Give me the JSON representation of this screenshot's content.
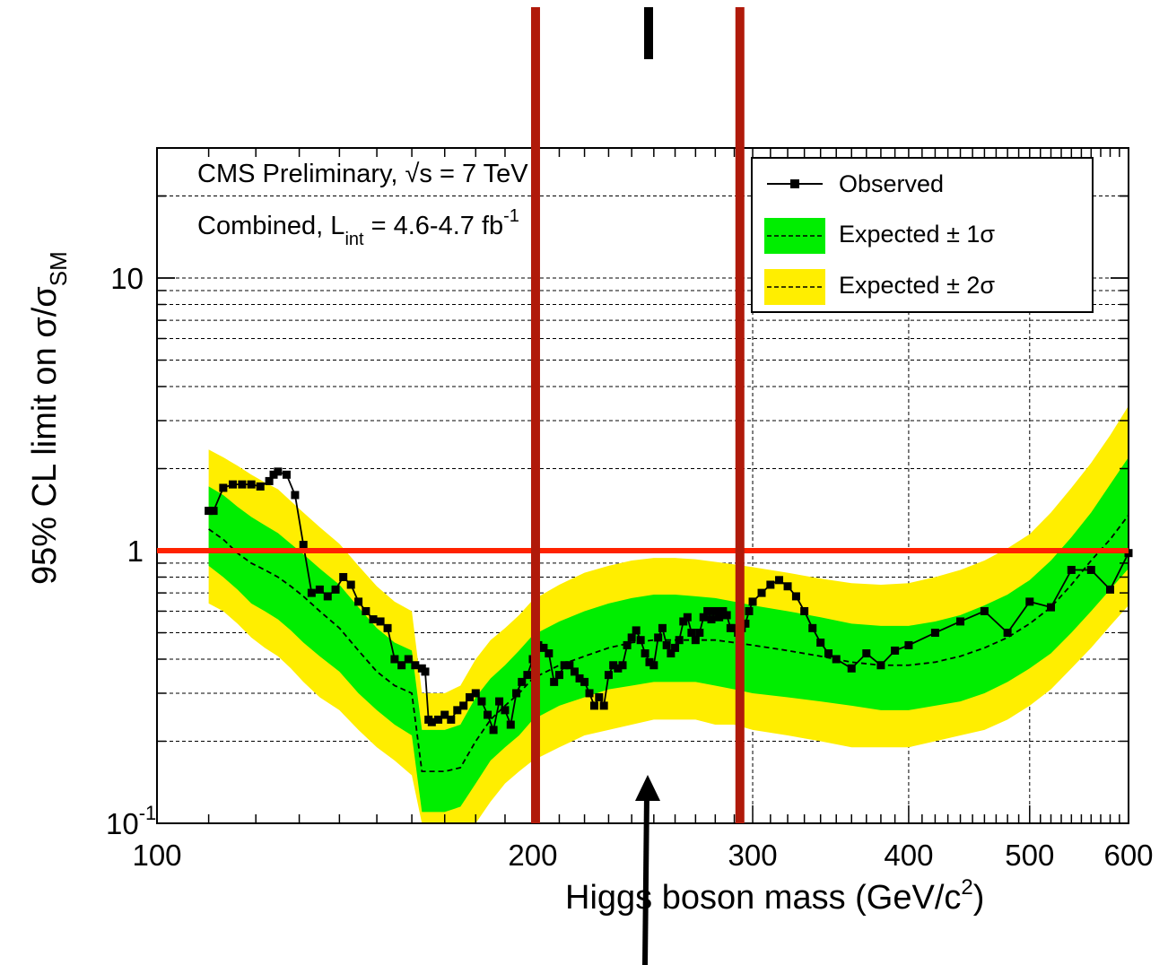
{
  "chart_data": {
    "type": "line",
    "x_scale": "log",
    "y_scale": "log",
    "xlim": [
      100,
      600
    ],
    "ylim": [
      0.1,
      30
    ],
    "grid": true,
    "legend_position": "top-right",
    "title_lines": {
      "line1_prefix": "CMS Preliminary, ",
      "sqrt": "√s",
      "line1_suffix": " = 7 TeV",
      "line2_prefix": "Combined, L",
      "line2_sub": "int",
      "line2_mid": " = 4.6-4.7 fb",
      "line2_sup": "-1"
    },
    "xlabel": {
      "text": "Higgs boson mass (GeV/c",
      "sup": "2",
      "suffix": ")"
    },
    "ylabel": {
      "text": "95% CL limit on σ/σ",
      "sub": "SM"
    },
    "x_ticks": [
      {
        "value": 100,
        "label": "100"
      },
      {
        "value": 200,
        "label": "200"
      },
      {
        "value": 300,
        "label": "300"
      },
      {
        "value": 400,
        "label": "400"
      },
      {
        "value": 500,
        "label": "500"
      },
      {
        "value": 600,
        "label": "600"
      }
    ],
    "y_ticks": [
      {
        "value": 0.1,
        "label": "10",
        "sup": "-1"
      },
      {
        "value": 1,
        "label": "1",
        "sup": ""
      },
      {
        "value": 10,
        "label": "10",
        "sup": ""
      }
    ],
    "legend": {
      "observed": "Observed",
      "expected1": "Expected ± 1σ",
      "expected2": "Expected ± 2σ"
    },
    "colors": {
      "band1": "#00ee00",
      "band2": "#ffee00",
      "observed": "#000000",
      "reference_line": "#ff2200",
      "marker_lines": "#b01a0a"
    },
    "reference_line": {
      "y": 1
    },
    "marker_lines_x": [
      201,
      293
    ],
    "expected": {
      "x": [
        110,
        113,
        116,
        119,
        122,
        125,
        128,
        131,
        135,
        140,
        145,
        150,
        155,
        160,
        163,
        165,
        170,
        175,
        180,
        185,
        190,
        195,
        200,
        210,
        220,
        230,
        240,
        250,
        260,
        270,
        280,
        290,
        300,
        320,
        340,
        360,
        380,
        400,
        420,
        440,
        460,
        480,
        500,
        520,
        540,
        560,
        580,
        600
      ],
      "median": [
        1.2,
        1.1,
        0.98,
        0.9,
        0.85,
        0.8,
        0.74,
        0.68,
        0.6,
        0.52,
        0.43,
        0.36,
        0.32,
        0.3,
        0.155,
        0.155,
        0.155,
        0.16,
        0.2,
        0.24,
        0.27,
        0.3,
        0.34,
        0.38,
        0.41,
        0.44,
        0.46,
        0.47,
        0.47,
        0.47,
        0.47,
        0.46,
        0.45,
        0.43,
        0.41,
        0.39,
        0.38,
        0.38,
        0.39,
        0.41,
        0.44,
        0.48,
        0.54,
        0.62,
        0.75,
        0.92,
        1.1,
        1.35
      ],
      "band1": {
        "low": [
          0.88,
          0.8,
          0.72,
          0.64,
          0.6,
          0.56,
          0.51,
          0.46,
          0.41,
          0.36,
          0.3,
          0.26,
          0.23,
          0.21,
          0.11,
          0.11,
          0.11,
          0.115,
          0.14,
          0.17,
          0.19,
          0.21,
          0.24,
          0.27,
          0.29,
          0.31,
          0.32,
          0.33,
          0.33,
          0.33,
          0.32,
          0.31,
          0.3,
          0.29,
          0.28,
          0.27,
          0.26,
          0.26,
          0.27,
          0.28,
          0.3,
          0.33,
          0.37,
          0.42,
          0.5,
          0.6,
          0.72,
          0.86
        ],
        "high": [
          1.72,
          1.6,
          1.45,
          1.33,
          1.24,
          1.16,
          1.06,
          0.97,
          0.86,
          0.75,
          0.62,
          0.52,
          0.46,
          0.43,
          0.22,
          0.22,
          0.22,
          0.23,
          0.29,
          0.34,
          0.38,
          0.43,
          0.49,
          0.55,
          0.6,
          0.64,
          0.67,
          0.69,
          0.69,
          0.68,
          0.67,
          0.65,
          0.63,
          0.6,
          0.57,
          0.54,
          0.53,
          0.53,
          0.55,
          0.58,
          0.63,
          0.69,
          0.78,
          0.92,
          1.12,
          1.38,
          1.75,
          2.2
        ]
      },
      "band2": {
        "low": [
          0.64,
          0.6,
          0.54,
          0.48,
          0.44,
          0.41,
          0.37,
          0.33,
          0.29,
          0.26,
          0.22,
          0.19,
          0.17,
          0.15,
          0.085,
          0.085,
          0.085,
          0.09,
          0.1,
          0.12,
          0.14,
          0.155,
          0.17,
          0.19,
          0.21,
          0.22,
          0.23,
          0.24,
          0.24,
          0.24,
          0.23,
          0.23,
          0.22,
          0.21,
          0.2,
          0.19,
          0.19,
          0.19,
          0.2,
          0.21,
          0.22,
          0.24,
          0.27,
          0.31,
          0.37,
          0.44,
          0.53,
          0.63
        ],
        "high": [
          2.35,
          2.2,
          2.05,
          1.9,
          1.78,
          1.68,
          1.52,
          1.38,
          1.22,
          1.06,
          0.88,
          0.74,
          0.65,
          0.6,
          0.3,
          0.3,
          0.3,
          0.32,
          0.4,
          0.47,
          0.52,
          0.58,
          0.66,
          0.75,
          0.83,
          0.88,
          0.92,
          0.94,
          0.94,
          0.93,
          0.91,
          0.89,
          0.87,
          0.83,
          0.79,
          0.76,
          0.75,
          0.76,
          0.8,
          0.85,
          0.92,
          1.02,
          1.15,
          1.38,
          1.7,
          2.1,
          2.65,
          3.4
        ]
      }
    },
    "observed": {
      "x": [
        110,
        111,
        113,
        115,
        117,
        119,
        121,
        123,
        124,
        125,
        127,
        129,
        131,
        133,
        135,
        137,
        139,
        141,
        143,
        145,
        147,
        149,
        151,
        153,
        155,
        157,
        159,
        161,
        163,
        164,
        165,
        166,
        168,
        170,
        172,
        174,
        176,
        178,
        180,
        182,
        184,
        186,
        188,
        190,
        192,
        194,
        196,
        198,
        200,
        202,
        204,
        206,
        208,
        210,
        212,
        214,
        216,
        218,
        220,
        222,
        224,
        226,
        228,
        230,
        232,
        234,
        236,
        238,
        240,
        242,
        244,
        246,
        248,
        250,
        252,
        254,
        256,
        258,
        260,
        262,
        264,
        266,
        268,
        270,
        272,
        274,
        276,
        278,
        280,
        282,
        284,
        286,
        288,
        290,
        292,
        294,
        296,
        298,
        300,
        305,
        310,
        315,
        320,
        325,
        330,
        335,
        340,
        345,
        350,
        360,
        370,
        380,
        390,
        400,
        420,
        440,
        460,
        480,
        500,
        520,
        540,
        560,
        580,
        600
      ],
      "y": [
        1.4,
        1.4,
        1.7,
        1.75,
        1.75,
        1.75,
        1.72,
        1.8,
        1.9,
        1.95,
        1.9,
        1.6,
        1.05,
        0.7,
        0.72,
        0.68,
        0.72,
        0.8,
        0.75,
        0.65,
        0.6,
        0.56,
        0.55,
        0.52,
        0.4,
        0.38,
        0.4,
        0.38,
        0.37,
        0.36,
        0.24,
        0.235,
        0.24,
        0.25,
        0.24,
        0.26,
        0.27,
        0.29,
        0.3,
        0.28,
        0.25,
        0.22,
        0.28,
        0.26,
        0.23,
        0.3,
        0.33,
        0.35,
        0.4,
        0.45,
        0.44,
        0.42,
        0.33,
        0.35,
        0.38,
        0.38,
        0.36,
        0.34,
        0.33,
        0.3,
        0.27,
        0.29,
        0.27,
        0.35,
        0.38,
        0.37,
        0.38,
        0.45,
        0.48,
        0.51,
        0.47,
        0.42,
        0.39,
        0.38,
        0.48,
        0.52,
        0.45,
        0.42,
        0.44,
        0.47,
        0.55,
        0.57,
        0.5,
        0.47,
        0.5,
        0.57,
        0.6,
        0.56,
        0.6,
        0.57,
        0.6,
        0.58,
        0.52,
        0.52,
        0.5,
        0.52,
        0.54,
        0.6,
        0.65,
        0.7,
        0.75,
        0.78,
        0.74,
        0.68,
        0.6,
        0.52,
        0.46,
        0.42,
        0.4,
        0.37,
        0.42,
        0.38,
        0.43,
        0.45,
        0.5,
        0.55,
        0.6,
        0.5,
        0.65,
        0.62,
        0.85,
        0.85,
        0.72,
        0.98
      ]
    }
  }
}
